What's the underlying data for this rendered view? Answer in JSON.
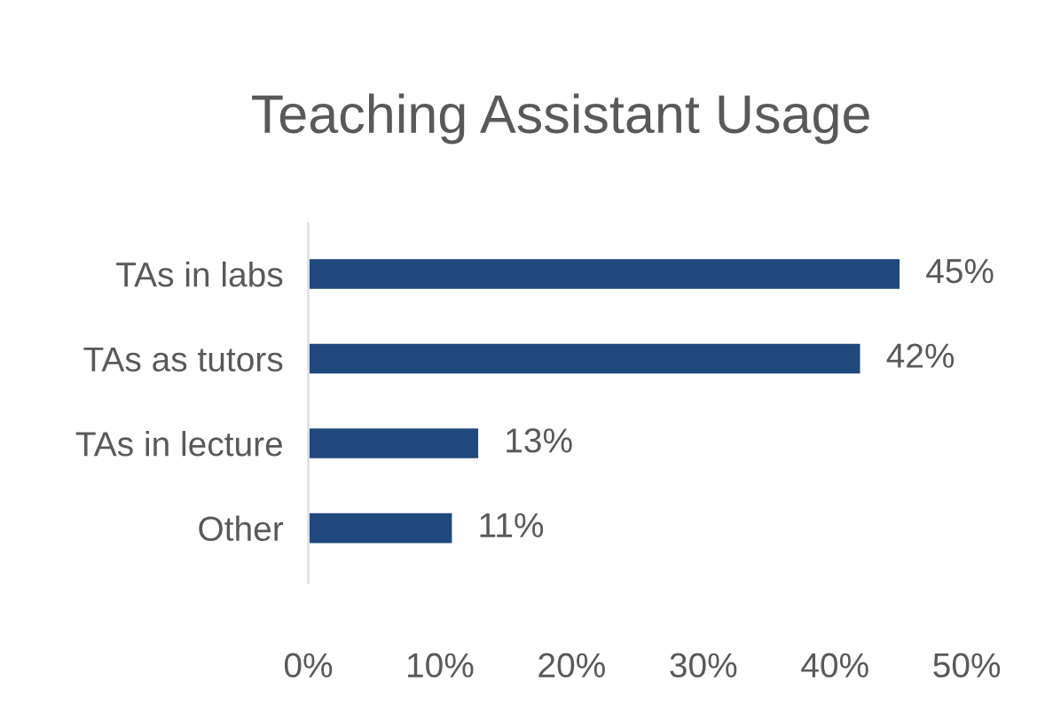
{
  "chart_data": {
    "type": "bar",
    "orientation": "horizontal",
    "title": "Teaching Assistant Usage",
    "categories": [
      "TAs in labs",
      "TAs as tutors",
      "TAs in lecture",
      "Other"
    ],
    "values": [
      45,
      42,
      13,
      11
    ],
    "color": "#1f497d",
    "value_labels": [
      "45%",
      "42%",
      "13%",
      "11%"
    ],
    "xlim": [
      0,
      50
    ],
    "xticks": [
      {
        "value": 0,
        "label": "0%"
      },
      {
        "value": 10,
        "label": "10%"
      },
      {
        "value": 20,
        "label": "20%"
      },
      {
        "value": 30,
        "label": "30%"
      },
      {
        "value": 40,
        "label": "40%"
      },
      {
        "value": 50,
        "label": "50%"
      }
    ],
    "grid": false,
    "legend": false
  }
}
